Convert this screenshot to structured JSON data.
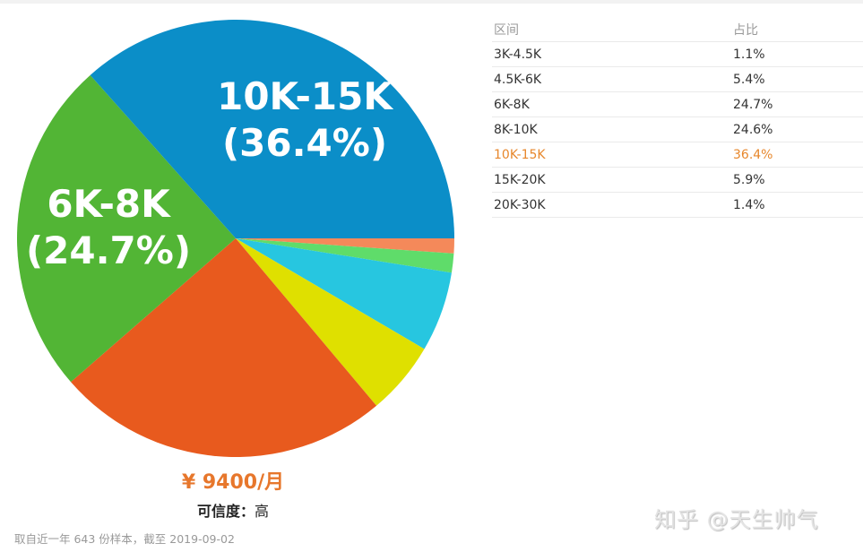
{
  "chart_data": {
    "type": "pie",
    "title": "",
    "categories": [
      "3K-4.5K",
      "4.5K-6K",
      "6K-8K",
      "8K-10K",
      "10K-15K",
      "15K-20K",
      "20K-30K"
    ],
    "values": [
      1.1,
      5.4,
      24.7,
      24.6,
      36.4,
      5.9,
      1.4
    ],
    "unit": "%",
    "colors": {
      "3K-4.5K": "#f4895a",
      "4.5K-6K": "#dfe000",
      "6K-8K": "#52b535",
      "8K-10K": "#e85a1e",
      "10K-15K": "#0b8ec8",
      "15K-20K": "#27c6e0",
      "20K-30K": "#5fdc6a"
    },
    "draw_order_clockwise_from_3oclock": [
      "3K-4.5K",
      "20K-30K",
      "15K-20K",
      "4.5K-6K",
      "8K-10K",
      "6K-8K",
      "10K-15K"
    ],
    "slice_labels": [
      {
        "category": "10K-15K",
        "line1": "10K-15K",
        "line2": "(36.4%)"
      },
      {
        "category": "6K-8K",
        "line1": "6K-8K",
        "line2": "(24.7%)"
      }
    ],
    "legend_position": "right-table"
  },
  "summary": {
    "average_salary": "¥ 9400/月",
    "confidence_label": "可信度：",
    "confidence_value": "高",
    "footnote": "取自近一年 643 份样本，截至 2019-09-02"
  },
  "table": {
    "headers": [
      "区间",
      "占比"
    ],
    "rows": [
      {
        "range": "3K-4.5K",
        "share": "1.1%",
        "highlight": false
      },
      {
        "range": "4.5K-6K",
        "share": "5.4%",
        "highlight": false
      },
      {
        "range": "6K-8K",
        "share": "24.7%",
        "highlight": false
      },
      {
        "range": "8K-10K",
        "share": "24.6%",
        "highlight": false
      },
      {
        "range": "10K-15K",
        "share": "36.4%",
        "highlight": true
      },
      {
        "range": "15K-20K",
        "share": "5.9%",
        "highlight": false
      },
      {
        "range": "20K-30K",
        "share": "1.4%",
        "highlight": false
      }
    ],
    "highlight_color": "#e7872c"
  },
  "watermark": "知乎 @天生帅气"
}
